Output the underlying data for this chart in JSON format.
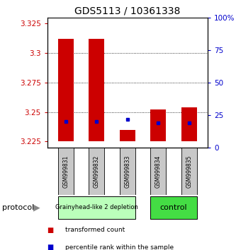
{
  "title": "GDS5113 / 10361338",
  "samples": [
    "GSM999831",
    "GSM999832",
    "GSM999833",
    "GSM999834",
    "GSM999835"
  ],
  "bar_bottoms": [
    3.225,
    3.225,
    3.225,
    3.225,
    3.225
  ],
  "bar_tops": [
    3.312,
    3.312,
    3.235,
    3.252,
    3.254
  ],
  "blue_positions": [
    3.242,
    3.242,
    3.244,
    3.241,
    3.241
  ],
  "ylim_left": [
    3.22,
    3.33
  ],
  "ylim_right": [
    0,
    100
  ],
  "yticks_left": [
    3.225,
    3.25,
    3.275,
    3.3,
    3.325
  ],
  "yticks_right": [
    0,
    25,
    50,
    75,
    100
  ],
  "ytick_labels_right": [
    "0",
    "25",
    "50",
    "75",
    "100%"
  ],
  "bar_color": "#cc0000",
  "blue_color": "#0000cc",
  "groups": [
    {
      "label": "Grainyhead-like 2 depletion",
      "indices": [
        0,
        1,
        2
      ],
      "color": "#bbffbb"
    },
    {
      "label": "control",
      "indices": [
        3,
        4
      ],
      "color": "#44dd44"
    }
  ],
  "protocol_label": "protocol",
  "legend_items": [
    {
      "color": "#cc0000",
      "label": "transformed count"
    },
    {
      "color": "#0000cc",
      "label": "percentile rank within the sample"
    }
  ],
  "bar_width": 0.5,
  "background_color": "#ffffff",
  "tick_color_left": "#cc0000",
  "tick_color_right": "#0000cc",
  "grid_lines": [
    3.25,
    3.275,
    3.3
  ],
  "title_fontsize": 10
}
